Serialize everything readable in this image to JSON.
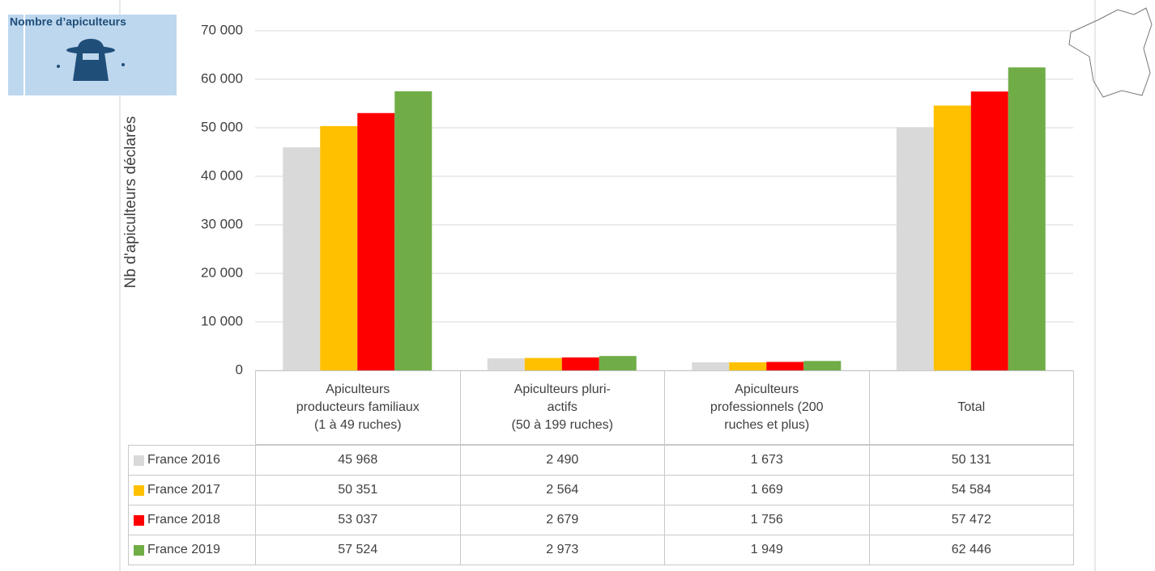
{
  "badge": {
    "text": "Nombre d’apiculteurs"
  },
  "chart_data": {
    "type": "bar",
    "y_label": "Nb d'apiculteurs déclarés",
    "categories": [
      "Apiculteurs\nproducteurs familiaux\n(1 à 49 ruches)",
      "Apiculteurs pluri-\nactifs\n(50 à 199 ruches)",
      "Apiculteurs\nprofessionnels (200\nruches et plus)",
      "Total"
    ],
    "series": [
      {
        "name": "France 2016",
        "color": "#d9d9d9",
        "values": [
          45968,
          2490,
          1673,
          50131
        ],
        "value_labels": [
          "45 968",
          "2 490",
          "1 673",
          "50 131"
        ]
      },
      {
        "name": "France 2017",
        "color": "#ffc000",
        "values": [
          50351,
          2564,
          1669,
          54584
        ],
        "value_labels": [
          "50 351",
          "2 564",
          "1 669",
          "54 584"
        ]
      },
      {
        "name": "France 2018",
        "color": "#ff0000",
        "values": [
          53037,
          2679,
          1756,
          57472
        ],
        "value_labels": [
          "53 037",
          "2 679",
          "1 756",
          "57 472"
        ]
      },
      {
        "name": "France 2019",
        "color": "#70ad47",
        "values": [
          57524,
          2973,
          1949,
          62446
        ],
        "value_labels": [
          "57 524",
          "2 973",
          "1 949",
          "62 446"
        ]
      }
    ],
    "ylim": [
      0,
      70000
    ],
    "yticks": [
      0,
      {
        "value": 10000,
        "label": "10 000"
      },
      {
        "value": 20000,
        "label": "20 000"
      },
      {
        "value": 30000,
        "label": "30 000"
      },
      {
        "value": 40000,
        "label": "40 000"
      },
      {
        "value": 50000,
        "label": "50 000"
      },
      {
        "value": 60000,
        "label": "60 000"
      },
      {
        "value": 70000,
        "label": "70 000"
      }
    ],
    "grid": true
  }
}
